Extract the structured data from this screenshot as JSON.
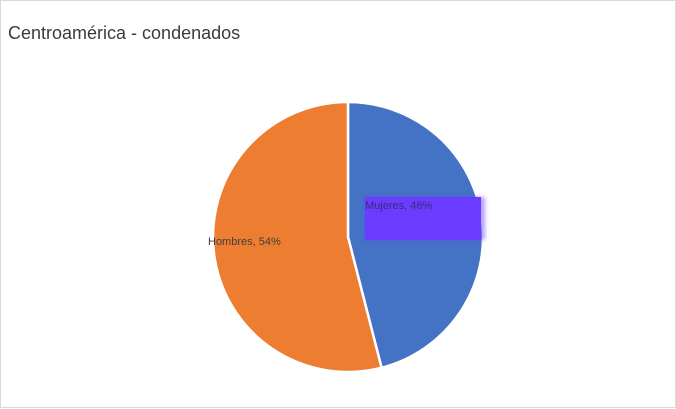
{
  "chart_data": {
    "type": "pie",
    "title": "Centroamérica - condenados",
    "slices": [
      {
        "label": "Mujeres",
        "value": 46,
        "color": "#4472c4",
        "data_label": "Mujeres, 46%"
      },
      {
        "label": "Hombres",
        "value": 54,
        "color": "#ed7d31",
        "data_label": "Hombres, 54%"
      }
    ],
    "label_box_color": "#6a3cff",
    "label_text_color": "#404040",
    "legend": "none"
  }
}
